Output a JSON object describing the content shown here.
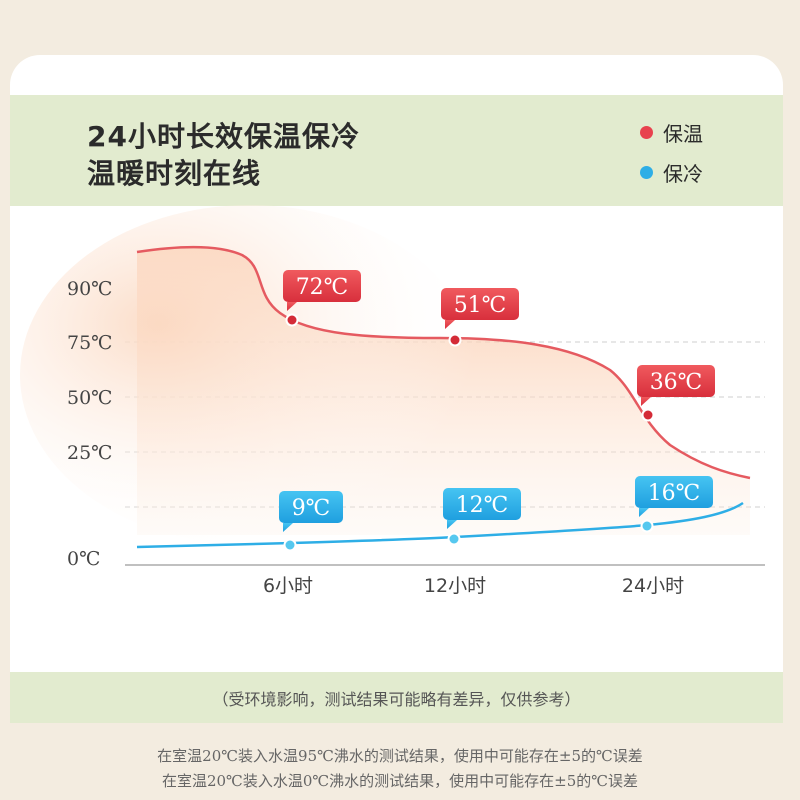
{
  "header": {
    "title_line1": "24小时长效保温保冷",
    "title_line2": "温暖时刻在线"
  },
  "legend": [
    {
      "label": "保温",
      "color": "#e8424e"
    },
    {
      "label": "保冷",
      "color": "#2eaee6"
    }
  ],
  "chart_data": {
    "type": "line",
    "y_ticks": [
      "90℃",
      "75℃",
      "50℃",
      "25℃",
      "0℃"
    ],
    "x_ticks": [
      "6小时",
      "12小时",
      "24小时"
    ],
    "series": [
      {
        "name": "保温",
        "color": "#e8424e",
        "fill": "#fbd2b6",
        "points": [
          {
            "x": "6小时",
            "label": "72℃"
          },
          {
            "x": "12小时",
            "label": "51℃"
          },
          {
            "x": "24小时",
            "label": "36℃"
          }
        ]
      },
      {
        "name": "保冷",
        "color": "#2eaee6",
        "points": [
          {
            "x": "6小时",
            "label": "9℃"
          },
          {
            "x": "12小时",
            "label": "12℃"
          },
          {
            "x": "24小时",
            "label": "16℃"
          }
        ]
      }
    ],
    "grid": "dashed horizontal"
  },
  "footer_note": "（受环境影响，测试结果可能略有差异，仅供参考）",
  "captions": [
    "在室温20℃装入水温95℃沸水的测试结果，使用中可能存在±5的℃误差",
    "在室温20℃装入水温0℃沸水的测试结果，使用中可能存在±5的℃误差"
  ]
}
